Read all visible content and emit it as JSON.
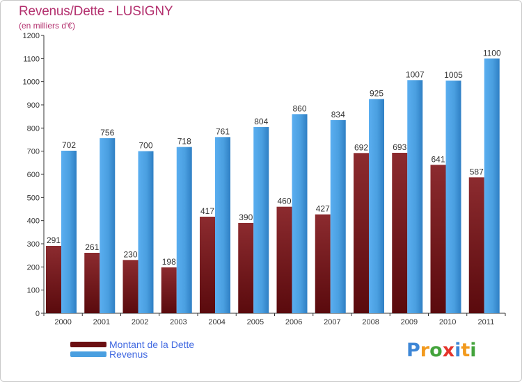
{
  "header": {
    "title": "Revenus/Dette - LUSIGNY",
    "subtitle": "(en milliers d'€)"
  },
  "chart_data": {
    "type": "bar",
    "title": "Revenus/Dette - LUSIGNY",
    "subtitle": "(en milliers d'€)",
    "xlabel": "",
    "ylabel": "",
    "ylim": [
      0,
      1200
    ],
    "yticks": [
      0,
      100,
      200,
      300,
      400,
      500,
      600,
      700,
      800,
      900,
      1000,
      1100,
      1200
    ],
    "grid": false,
    "legend": "bottom-left",
    "categories": [
      "2000",
      "2001",
      "2002",
      "2003",
      "2004",
      "2005",
      "2006",
      "2007",
      "2008",
      "2009",
      "2010",
      "2011"
    ],
    "series": [
      {
        "name": "Montant de la Dette",
        "color": "#7a1e22",
        "values": [
          291,
          261,
          230,
          198,
          417,
          390,
          460,
          427,
          692,
          693,
          641,
          587
        ]
      },
      {
        "name": "Revenus",
        "color": "#4a9fe0",
        "values": [
          702,
          756,
          700,
          718,
          761,
          804,
          860,
          834,
          925,
          1007,
          1005,
          1100
        ]
      }
    ]
  },
  "legend": {
    "items": [
      {
        "label": "Montant de la Dette",
        "color": "#6b0f12"
      },
      {
        "label": "Revenus",
        "color": "#4a9fe0"
      }
    ]
  },
  "logo": {
    "text": "Proxiti",
    "letters": [
      {
        "ch": "P",
        "color": "#3d86d6"
      },
      {
        "ch": "r",
        "color": "#f29a1e"
      },
      {
        "ch": "o",
        "color": "#43a33b"
      },
      {
        "ch": "x",
        "color": "#e5332a"
      },
      {
        "ch": "i",
        "color": "#3d86d6"
      },
      {
        "ch": "t",
        "color": "#f29a1e"
      },
      {
        "ch": "i",
        "color": "#43a33b"
      }
    ]
  }
}
